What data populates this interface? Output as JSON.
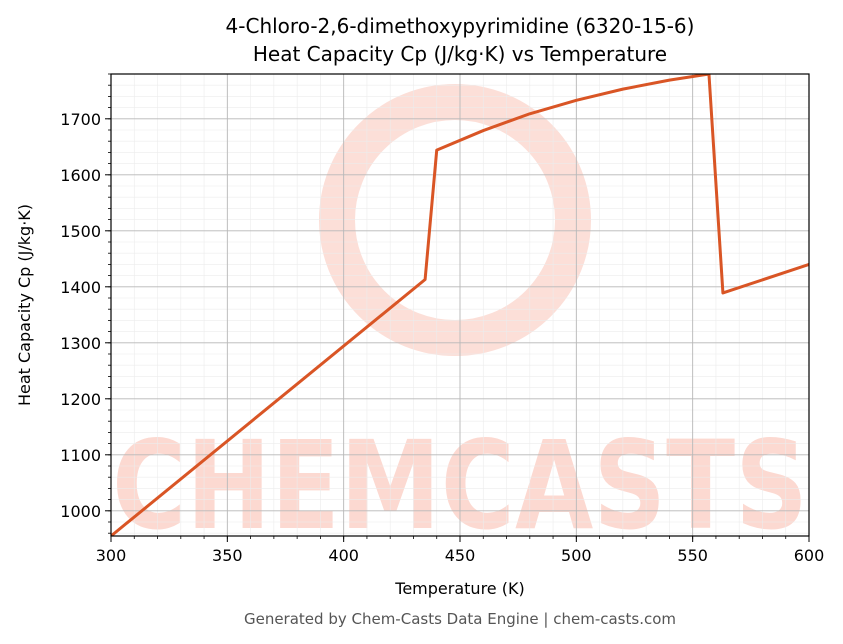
{
  "chart_data": {
    "type": "line",
    "title_line1": "4-Chloro-2,6-dimethoxypyrimidine (6320-15-6)",
    "title_line2": "Heat Capacity Cp (J/kg·K) vs Temperature",
    "xlabel": "Temperature (K)",
    "ylabel": "Heat Capacity Cp (J/kg·K)",
    "xlim": [
      300,
      600
    ],
    "ylim": [
      955,
      1780
    ],
    "x_ticks": [
      300,
      350,
      400,
      450,
      500,
      550,
      600
    ],
    "y_ticks": [
      1000,
      1100,
      1200,
      1300,
      1400,
      1500,
      1600,
      1700
    ],
    "grid": true,
    "line_color": "#d95525",
    "series": [
      {
        "x": [
          300,
          435,
          440,
          460,
          480,
          500,
          520,
          540,
          557,
          563,
          600
        ],
        "y": [
          955,
          1413,
          1644,
          1679,
          1709,
          1733,
          1753,
          1769,
          1780,
          1389,
          1440
        ]
      }
    ]
  },
  "watermark": {
    "text": "CHEMCASTS",
    "color": "#fcd9d1"
  },
  "footer": "Generated by Chem-Casts Data Engine | chem-casts.com"
}
